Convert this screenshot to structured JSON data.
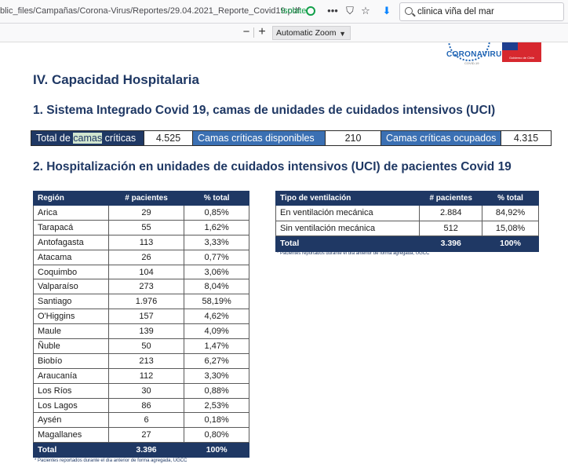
{
  "browser": {
    "url": "blic_files/Campañas/Corona-Virus/Reportes/29.04.2021_Reporte_Covid19.pdf",
    "isolate_label": "Isolate",
    "search_value": "clinica viña del mar"
  },
  "pdf_toolbar": {
    "zoom_out": "−",
    "zoom_in": "+",
    "zoom_level": "Automatic Zoom"
  },
  "logos": {
    "corona_word": "CORONAVIRUS",
    "corona_sub": "COVID-19",
    "gov_text": "Gobierno de Chile"
  },
  "report": {
    "title": "IV. Capacidad Hospitalaria",
    "section1": "1. Sistema Integrado Covid 19, camas de unidades de cuidados intensivos (UCI)",
    "summary": {
      "total_label_pre": "Total de ",
      "total_label_hl": "camas",
      "total_label_post": " críticas",
      "total_value": "4.525",
      "available_label": "Camas críticas disponibles",
      "available_value": "210",
      "occupied_label": "Camas críticas ocupados",
      "occupied_value": "4.315"
    },
    "section2": "2. Hospitalización en unidades de cuidados intensivos (UCI) de pacientes Covid 19",
    "region_table": {
      "headers": [
        "Región",
        "# pacientes",
        "% total"
      ],
      "rows": [
        [
          "Arica",
          "29",
          "0,85%"
        ],
        [
          "Tarapacá",
          "55",
          "1,62%"
        ],
        [
          "Antofagasta",
          "113",
          "3,33%"
        ],
        [
          "Atacama",
          "26",
          "0,77%"
        ],
        [
          "Coquimbo",
          "104",
          "3,06%"
        ],
        [
          "Valparaíso",
          "273",
          "8,04%"
        ],
        [
          "Santiago",
          "1.976",
          "58,19%"
        ],
        [
          "O'Higgins",
          "157",
          "4,62%"
        ],
        [
          "Maule",
          "139",
          "4,09%"
        ],
        [
          "Ñuble",
          "50",
          "1,47%"
        ],
        [
          "Biobío",
          "213",
          "6,27%"
        ],
        [
          "Araucanía",
          "112",
          "3,30%"
        ],
        [
          "Los Ríos",
          "30",
          "0,88%"
        ],
        [
          "Los Lagos",
          "86",
          "2,53%"
        ],
        [
          "Aysén",
          "6",
          "0,18%"
        ],
        [
          "Magallanes",
          "27",
          "0,80%"
        ]
      ],
      "total": [
        "Total",
        "3.396",
        "100%"
      ],
      "note": "* Pacientes reportados durante el día anterior de forma agregada, UGCC"
    },
    "ventilation_table": {
      "headers": [
        "Tipo de ventilación",
        "# pacientes",
        "% total"
      ],
      "rows": [
        [
          "En ventilación mecánica",
          "2.884",
          "84,92%"
        ],
        [
          "Sin ventilación mecánica",
          "512",
          "15,08%"
        ]
      ],
      "total": [
        "Total",
        "3.396",
        "100%"
      ],
      "note": "* Pacientes reportados durante el día anterior de forma agregada, UGCC"
    }
  }
}
